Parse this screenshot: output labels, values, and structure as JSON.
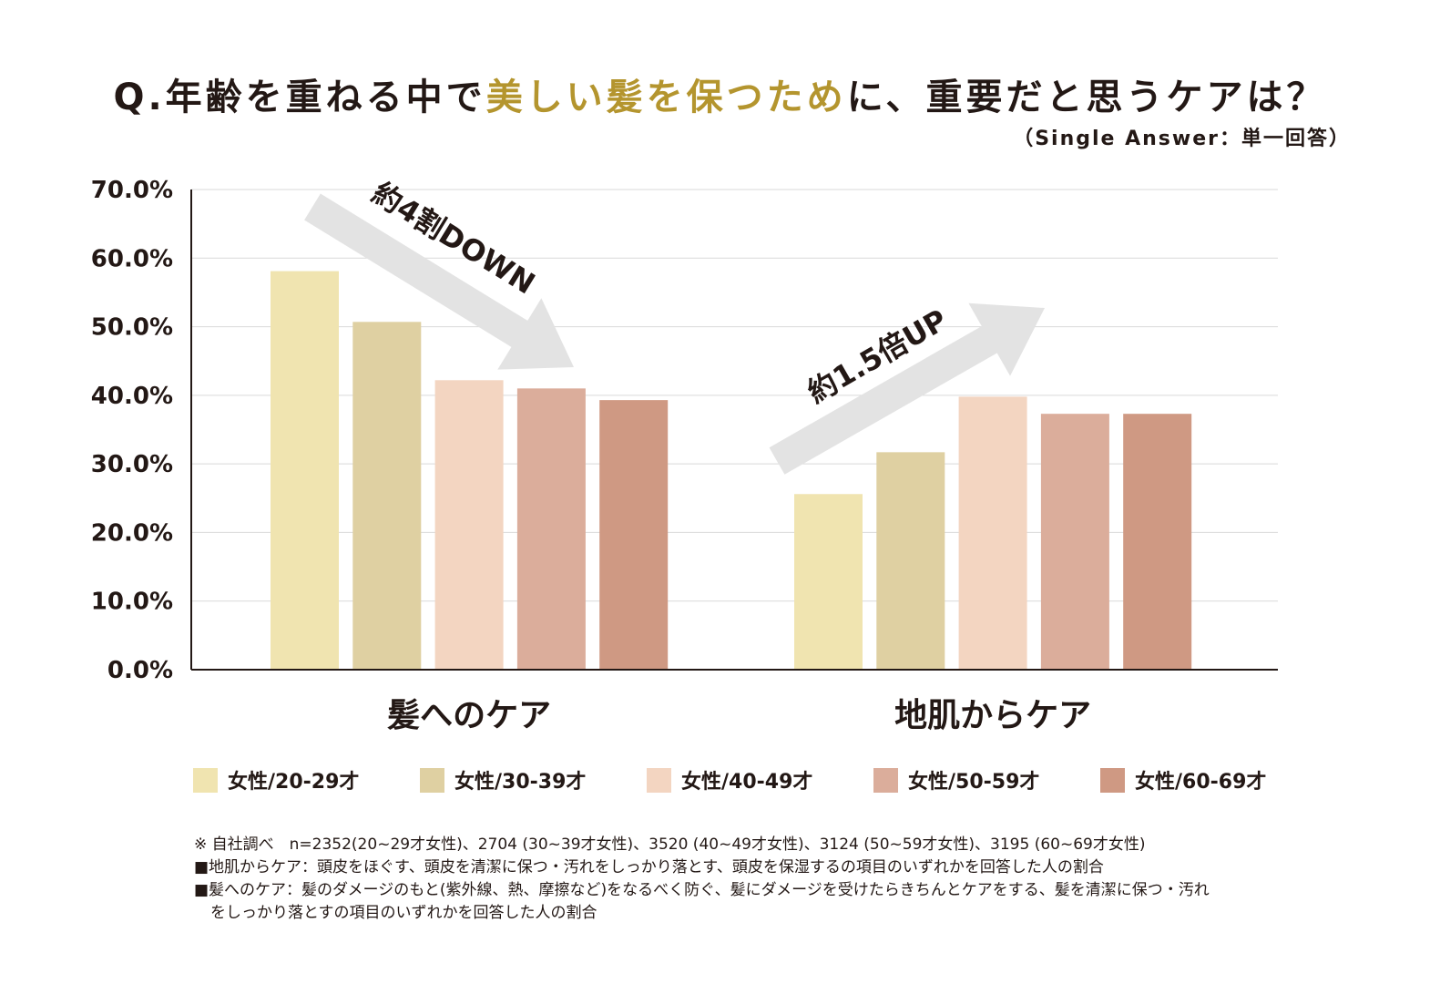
{
  "title": {
    "prefix": "Q.年齢を重ねる中で",
    "highlight": "美しい髪を保つため",
    "suffix": "に、重要だと思うケアは？",
    "highlight_color": "#b4952e"
  },
  "subtitle": "（Single Answer：単一回答）",
  "chart_data": {
    "type": "bar",
    "title": "Q.年齢を重ねる中で美しい髪を保つために、重要だと思うケアは？",
    "categories": [
      "髪へのケア",
      "地肌からケア"
    ],
    "ylim": [
      0,
      70
    ],
    "yticks": [
      0,
      10,
      20,
      30,
      40,
      50,
      60,
      70
    ],
    "ytick_labels": [
      "0.0%",
      "10.0%",
      "20.0%",
      "30.0%",
      "40.0%",
      "50.0%",
      "60.0%",
      "70.0%"
    ],
    "grid": true,
    "legend_position": "bottom",
    "series": [
      {
        "name": "女性/20-29才",
        "color": "#f0e4b0",
        "values": [
          58.1,
          25.6
        ]
      },
      {
        "name": "女性/30-39才",
        "color": "#dfd0a2",
        "values": [
          50.7,
          31.7
        ]
      },
      {
        "name": "女性/40-49才",
        "color": "#f3d5c1",
        "values": [
          42.2,
          39.8
        ]
      },
      {
        "name": "女性/50-59才",
        "color": "#dbad9b",
        "values": [
          41.0,
          37.3
        ]
      },
      {
        "name": "女性/60-69才",
        "color": "#cf9983",
        "values": [
          39.3,
          37.3
        ]
      }
    ],
    "annotations": [
      {
        "text": "約4割DOWN",
        "direction": "down",
        "group": "髪へのケア"
      },
      {
        "text": "約1.5倍UP",
        "direction": "up",
        "group": "地肌からケア"
      }
    ]
  },
  "notes": [
    "※ 自社調べ　n=2352(20~29才女性)、2704 (30~39才女性)、3520 (40~49才女性)、3124 (50~59才女性)、3195 (60~69才女性)",
    "■地肌からケア：頭皮をほぐす、頭皮を清潔に保つ・汚れをしっかり落とす、頭皮を保湿するの項目のいずれかを回答した人の割合",
    "■髪へのケア：髪のダメージのもと(紫外線、熱、摩擦など)をなるべく防ぐ、髪にダメージを受けたらきちんとケアをする、髪を清潔に保つ・汚れ",
    "をしっかり落とすの項目のいずれかを回答した人の割合"
  ]
}
